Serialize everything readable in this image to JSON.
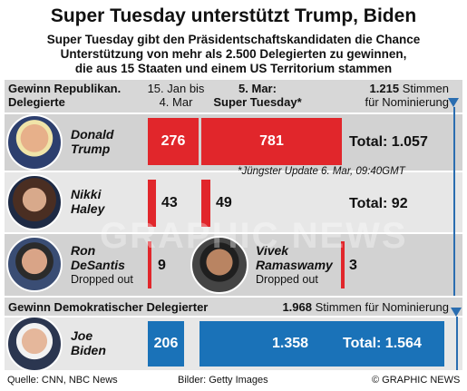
{
  "title": "Super Tuesday unterstützt Trump, Biden",
  "subtitle_lines": [
    "Super Tuesday gibt den Präsidentschaftskandidaten die Chance",
    "Unterstützung von mehr als 2.500 Delegierten zu gewinnen,",
    "die aus 15 Staaten und einem US Territorium stammen"
  ],
  "republican": {
    "heading_lines": [
      "Gewinn Republikan.",
      "Delegierte"
    ],
    "col1_lines": [
      "15. Jan bis",
      "4. Mar"
    ],
    "col2_lines": [
      "5. Mar:",
      "Super Tuesday*"
    ],
    "threshold_value": "1.215",
    "threshold_lines": [
      "Stimmen",
      "für Nominierung"
    ],
    "update_note": "*Jüngster Update 6. Mar, 09:40GMT"
  },
  "democratic": {
    "heading": "Gewinn Demokratischer Delegierter",
    "threshold_value": "1.968",
    "threshold_text": "Stimmen für Nominierung"
  },
  "chart_data": [
    {
      "type": "bar",
      "orientation": "horizontal",
      "stacked": true,
      "categories": [
        "Donald Trump",
        "Nikki Haley",
        "Ron DeSantis",
        "Vivek Ramaswamy"
      ],
      "series": [
        {
          "name": "15. Jan bis 4. Mar",
          "values": [
            276,
            43,
            9,
            3
          ]
        },
        {
          "name": "5. Mar: Super Tuesday*",
          "values": [
            781,
            49,
            0,
            0
          ]
        }
      ],
      "totals": [
        1057,
        92,
        null,
        null
      ],
      "total_labels": [
        "Total: 1.057",
        "Total: 92",
        "",
        ""
      ],
      "notes": [
        "",
        "",
        "Dropped out",
        "Dropped out"
      ],
      "threshold": 1215,
      "color": "#e1262b"
    },
    {
      "type": "bar",
      "orientation": "horizontal",
      "stacked": true,
      "categories": [
        "Joe Biden"
      ],
      "series": [
        {
          "name": "15. Jan bis 4. Mar",
          "values": [
            206
          ]
        },
        {
          "name": "5. Mar: Super Tuesday*",
          "values": [
            1358
          ]
        }
      ],
      "totals": [
        1564
      ],
      "total_labels": [
        "Total: 1.564"
      ],
      "threshold": 1968,
      "color": "#1a72b8"
    }
  ],
  "candidates": {
    "trump": {
      "first": "Donald",
      "last": "Trump",
      "v1": "276",
      "v2": "781",
      "total": "Total: 1.057"
    },
    "haley": {
      "first": "Nikki",
      "last": "Haley",
      "v1": "43",
      "v2": "49",
      "total": "Total: 92"
    },
    "desantis": {
      "first": "Ron",
      "last": "DeSantis",
      "note": "Dropped out",
      "v1": "9"
    },
    "ramaswamy": {
      "first": "Vivek",
      "last": "Ramaswamy",
      "note": "Dropped out",
      "v1": "3"
    },
    "biden": {
      "first": "Joe",
      "last": "Biden",
      "v1": "206",
      "v2": "1.358",
      "total": "Total: 1.564"
    }
  },
  "footer": {
    "source": "Quelle: CNN, NBC News",
    "images": "Bilder: Getty Images",
    "credit": "© GRAPHIC NEWS"
  },
  "watermark": "GRAPHIC NEWS",
  "colors": {
    "republican": "#e1262b",
    "democratic": "#1a72b8",
    "threshold": "#2a6db0"
  }
}
